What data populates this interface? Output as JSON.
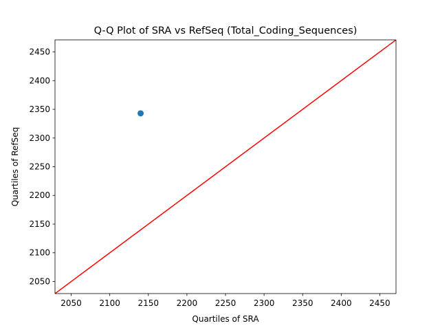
{
  "chart_data": {
    "type": "scatter",
    "title": "Q-Q Plot of SRA vs RefSeq (Total_Coding_Sequences)",
    "xlabel": "Quartiles of SRA",
    "ylabel": "Quartiles of RefSeq",
    "xlim": [
      2029,
      2471
    ],
    "ylim": [
      2029,
      2471
    ],
    "xticks": [
      2050,
      2100,
      2150,
      2200,
      2250,
      2300,
      2350,
      2400,
      2450
    ],
    "yticks": [
      2050,
      2100,
      2150,
      2200,
      2250,
      2300,
      2350,
      2400,
      2450
    ],
    "xtick_labels": [
      "2050",
      "2100",
      "2150",
      "2200",
      "2250",
      "2300",
      "2350",
      "2400",
      "2450"
    ],
    "ytick_labels": [
      "2050",
      "2100",
      "2150",
      "2200",
      "2250",
      "2300",
      "2350",
      "2400",
      "2450"
    ],
    "points": [
      {
        "x": 2140,
        "y": 2343
      }
    ],
    "reference_line": {
      "x": [
        2029,
        2471
      ],
      "y": [
        2029,
        2471
      ],
      "color": "#ff0000"
    },
    "point_color": "#1f77b4",
    "grid": false,
    "legend": "none"
  }
}
